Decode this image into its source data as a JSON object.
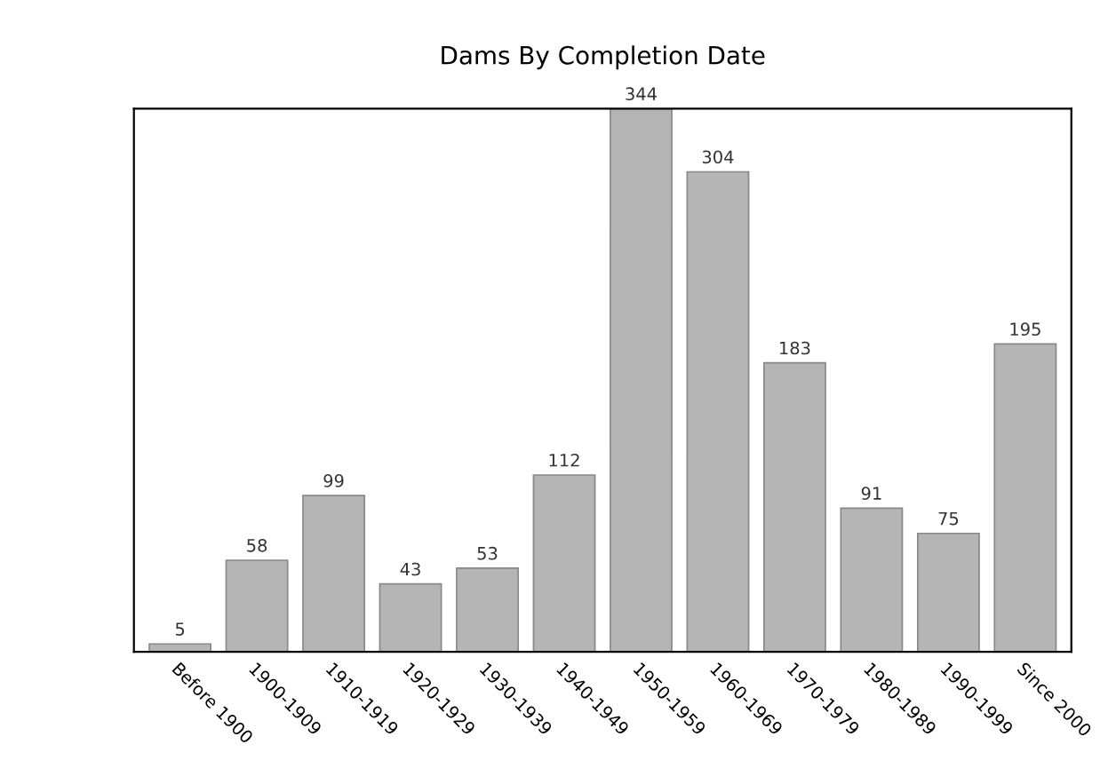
{
  "chart_data": {
    "type": "bar",
    "title": "Dams By Completion Date",
    "categories": [
      "Before 1900",
      "1900-1909",
      "1910-1919",
      "1920-1929",
      "1930-1939",
      "1940-1949",
      "1950-1959",
      "1960-1969",
      "1970-1979",
      "1980-1989",
      "1990-1999",
      "Since 2000"
    ],
    "values": [
      5,
      58,
      99,
      43,
      53,
      112,
      344,
      304,
      183,
      91,
      75,
      195
    ],
    "color": "#b5b5b5",
    "data_labels": true,
    "grid": false,
    "legend": false
  }
}
